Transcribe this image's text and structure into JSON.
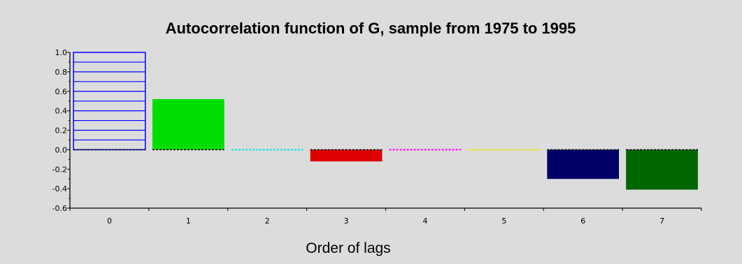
{
  "chart_data": {
    "type": "bar",
    "title": "Autocorrelation function of G, sample from 1975 to 1995",
    "xlabel": "Order of lags",
    "ylabel": "",
    "categories": [
      "0",
      "1",
      "2",
      "3",
      "4",
      "5",
      "6",
      "7"
    ],
    "values": [
      1.0,
      0.52,
      0.0,
      -0.12,
      0.0,
      0.0,
      -0.3,
      -0.41
    ],
    "ylim": [
      -0.6,
      1.0
    ],
    "yticks": [
      "1.0",
      "0.8",
      "0.6",
      "0.4",
      "0.2",
      "0.0",
      "-0.2",
      "-0.4",
      "-0.6"
    ],
    "ytick_values": [
      1.0,
      0.8,
      0.6,
      0.4,
      0.2,
      0.0,
      -0.2,
      -0.4,
      -0.6
    ],
    "bar_colors": [
      "#0000ff",
      "#00dd00",
      "#00e6e6",
      "#dd0000",
      "#ff00ff",
      "#e6e600",
      "#000066",
      "#006600"
    ],
    "bar_styles": [
      "hatched-outline",
      "solid",
      "solid",
      "solid",
      "solid",
      "solid",
      "solid",
      "solid"
    ],
    "zero_line_dashed": true,
    "grid": false,
    "legend": "none"
  }
}
